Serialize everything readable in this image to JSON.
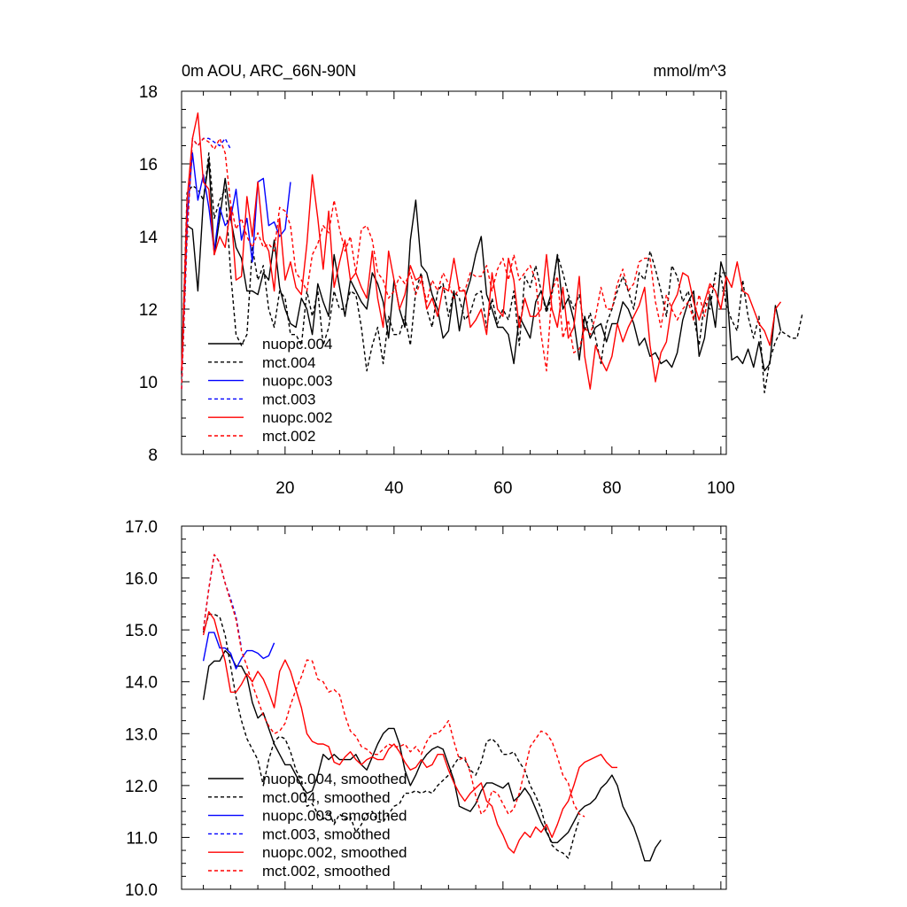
{
  "chart_data": [
    {
      "type": "line",
      "title": "0m AOU, ARC_66N-90N",
      "units": "mmol/m^3",
      "xlim": [
        1,
        101
      ],
      "ylim": [
        8,
        18
      ],
      "xticks": [
        20,
        40,
        60,
        80,
        100
      ],
      "yticks": [
        8,
        10,
        12,
        14,
        16,
        18
      ],
      "series": [
        {
          "name": "nuopc.004",
          "color": "#000000",
          "dash": false,
          "x_start": 1,
          "values": [
            10.3,
            14.3,
            14.2,
            12.5,
            15.0,
            16.1,
            13.5,
            14.5,
            15.6,
            14.5,
            13.7,
            13.4,
            12.5,
            12.5,
            12.4,
            13.0,
            12.8,
            13.9,
            12.6,
            12.0,
            11.6,
            11.5,
            12.3,
            12.0,
            11.3,
            12.7,
            12.2,
            11.8,
            13.5,
            12.6,
            11.8,
            12.8,
            12.5,
            12.2,
            12.0,
            13.0,
            12.7,
            12.2,
            11.2,
            12.8,
            12.0,
            11.5,
            13.9,
            15.0,
            13.2,
            13.0,
            12.4,
            12.0,
            11.2,
            11.4,
            12.5,
            11.4,
            12.3,
            12.8,
            13.5,
            14.0,
            12.4,
            12.0,
            11.5,
            11.5,
            11.3,
            10.5,
            11.8,
            11.5,
            11.2,
            12.2,
            12.5,
            12.0,
            12.5,
            13.5,
            12.0,
            12.3,
            11.7,
            10.6,
            11.8,
            11.2,
            11.5,
            11.6,
            11.1,
            11.6,
            11.6,
            12.2,
            12.0,
            11.6,
            11.0,
            11.2,
            10.7,
            10.8,
            10.5,
            10.6,
            10.4,
            10.8,
            11.7,
            12.2,
            12.5,
            10.7,
            11.2,
            12.4,
            11.5,
            13.3,
            12.8,
            10.6,
            10.7,
            10.5,
            10.9,
            10.4,
            11.1,
            10.3,
            10.5,
            12.1,
            11.4
          ]
        },
        {
          "name": "mct.004",
          "color": "#000000",
          "dash": true,
          "x_start": 1,
          "values": [
            10.2,
            15.2,
            15.4,
            15.3,
            15.0,
            16.3,
            14.5,
            15.0,
            15.3,
            13.0,
            11.3,
            11.0,
            11.3,
            13.7,
            12.8,
            13.2,
            12.0,
            11.5,
            12.5,
            12.3,
            11.3,
            11.3,
            11.0,
            12.5,
            11.8,
            12.5,
            11.0,
            11.5,
            12.5,
            12.0,
            12.0,
            12.5,
            12.4,
            11.5,
            10.3,
            11.0,
            11.5,
            10.5,
            11.8,
            11.3,
            11.3,
            11.8,
            11.0,
            12.5,
            13.0,
            12.0,
            11.5,
            12.5,
            12.7,
            11.8,
            12.5,
            12.3,
            11.7,
            11.9,
            12.4,
            12.5,
            11.5,
            12.3,
            11.6,
            12.0,
            11.7,
            12.5,
            11.0,
            12.9,
            12.6,
            13.2,
            12.5,
            11.9,
            12.4,
            13.5,
            13.0,
            12.4,
            12.0,
            12.4,
            11.4,
            11.9,
            11.2,
            10.5,
            11.6,
            12.0,
            12.5,
            12.9,
            12.5,
            12.0,
            13.0,
            12.8,
            13.6,
            13.1,
            12.5,
            11.8,
            13.2,
            12.9,
            12.2,
            12.5,
            11.8,
            11.0,
            12.2,
            12.0,
            13.0,
            12.9,
            12.1,
            11.7,
            11.4,
            12.8,
            11.8,
            11.2,
            11.8,
            9.7,
            10.6,
            11.1,
            11.4,
            11.3,
            11.2,
            11.2,
            11.9
          ]
        },
        {
          "name": "nuopc.003",
          "color": "#0000ff",
          "dash": false,
          "x_start": 1,
          "values": [
            10.3,
            14.5,
            16.3,
            15.0,
            15.7,
            14.8,
            13.6,
            14.8,
            14.3,
            14.5,
            15.3,
            13.9,
            14.5,
            13.3,
            15.5,
            15.6,
            14.3,
            14.4,
            14.0,
            14.2,
            15.5
          ]
        },
        {
          "name": "mct.003",
          "color": "#0000ff",
          "dash": true,
          "x_start": 1,
          "values": [
            9.8,
            14.0,
            16.7,
            16.5,
            16.7,
            16.7,
            16.6,
            16.5,
            16.7,
            16.4
          ]
        },
        {
          "name": "nuopc.002",
          "color": "#ff0000",
          "dash": false,
          "x_start": 1,
          "values": [
            10.3,
            15.0,
            16.7,
            17.4,
            15.5,
            15.3,
            13.5,
            14.0,
            13.7,
            14.8,
            12.8,
            12.9,
            15.1,
            14.0,
            15.5,
            13.9,
            13.6,
            12.5,
            14.5,
            12.8,
            13.3,
            12.6,
            12.4,
            13.8,
            15.7,
            14.5,
            13.1,
            14.7,
            12.6,
            13.3,
            13.9,
            12.8,
            13.0,
            12.6,
            12.3,
            13.6,
            12.3,
            11.5,
            13.6,
            12.8,
            12.0,
            12.4,
            13.2,
            12.8,
            12.9,
            12.0,
            12.3,
            11.8,
            12.6,
            12.5,
            13.4,
            12.5,
            12.5,
            11.5,
            11.7,
            12.0,
            11.3,
            13.0,
            12.0,
            11.8,
            13.4,
            12.8,
            11.5,
            12.3,
            11.8,
            11.8,
            12.0,
            13.5,
            12.0,
            11.5,
            12.6,
            11.2,
            11.5,
            12.9,
            10.7,
            9.8,
            11.0,
            10.6,
            10.3,
            10.7,
            11.6,
            11.1,
            11.5,
            11.8,
            12.1,
            12.6,
            11.0,
            10.0,
            10.8,
            11.1,
            12.1,
            12.4,
            13.0,
            12.9,
            12.2,
            11.7,
            12.2,
            12.7,
            12.5,
            12.0,
            12.9,
            12.6,
            13.3,
            12.5,
            12.4,
            12.0,
            11.6,
            11.4,
            11.0,
            12.0,
            12.2
          ]
        },
        {
          "name": "mct.002",
          "color": "#ff0000",
          "dash": true,
          "x_start": 1,
          "values": [
            9.8,
            14.0,
            16.7,
            16.5,
            16.7,
            16.6,
            16.4,
            16.7,
            16.3,
            14.9,
            14.2,
            14.5,
            14.0,
            13.7,
            14.1,
            13.7,
            13.8,
            13.6,
            14.8,
            14.7,
            14.3,
            13.0,
            12.8,
            12.5,
            13.5,
            13.8,
            14.3,
            14.1,
            15.0,
            14.2,
            13.6,
            14.0,
            13.0,
            14.2,
            14.3,
            13.9,
            13.0,
            12.8,
            12.3,
            12.5,
            12.9,
            12.7,
            13.0,
            12.4,
            12.8,
            12.2,
            12.8,
            12.5,
            13.0,
            12.7,
            12.3,
            12.6,
            12.5,
            13.0,
            12.9,
            12.9,
            13.2,
            12.5,
            13.1,
            13.4,
            12.8,
            13.5,
            12.8,
            13.0,
            13.2,
            12.8,
            11.3,
            10.3,
            12.5,
            12.9,
            11.2,
            11.7,
            10.8,
            10.9,
            11.5,
            11.3,
            11.8,
            12.6,
            12.0,
            12.0,
            12.7,
            13.1,
            12.5,
            12.7,
            13.3,
            13.4,
            13.4,
            12.2,
            11.5,
            12.4,
            12.0,
            11.7,
            12.0,
            12.2,
            11.7,
            12.4,
            11.8,
            12.6,
            12.7
          ]
        }
      ],
      "legend": {
        "placement": "bottom-left",
        "labels": [
          "nuopc.004",
          "mct.004",
          "nuopc.003",
          "mct.003",
          "nuopc.002",
          "mct.002"
        ]
      }
    },
    {
      "type": "line",
      "title": "",
      "xlim": [
        1,
        101
      ],
      "ylim": [
        10.0,
        17.0
      ],
      "xticks": [
        20,
        40,
        60,
        80,
        100
      ],
      "yticks": [
        "10.0",
        "11.0",
        "12.0",
        "13.0",
        "14.0",
        "15.0",
        "16.0",
        "17.0"
      ],
      "series": [
        {
          "name": "nuopc.004, smoothed",
          "color": "#000000",
          "dash": false,
          "x_start": 5,
          "values": [
            13.65,
            14.3,
            14.4,
            14.4,
            14.6,
            14.5,
            14.3,
            14.3,
            14.1,
            13.6,
            13.3,
            13.4,
            13.1,
            12.8,
            12.6,
            12.4,
            12.4,
            12.2,
            12.0,
            11.85,
            11.9,
            12.2,
            12.6,
            12.5,
            12.6,
            12.5,
            12.5,
            12.5,
            12.6,
            12.4,
            12.3,
            12.55,
            12.8,
            13.0,
            13.1,
            13.1,
            12.8,
            12.3,
            12.0,
            12.2,
            12.45,
            12.6,
            12.7,
            12.75,
            12.7,
            12.4,
            12.1,
            11.6,
            11.55,
            11.5,
            11.65,
            11.9,
            12.05,
            12.05,
            12.0,
            11.95,
            12.05,
            11.7,
            11.8,
            11.95,
            11.8,
            11.55,
            11.3,
            11.1,
            10.9,
            10.9,
            11.0,
            11.1,
            11.3,
            11.5,
            11.6,
            11.65,
            11.75,
            11.95,
            12.05,
            12.2,
            12.0,
            11.6,
            11.4,
            11.2,
            10.9,
            10.55,
            10.55,
            10.8,
            10.95
          ]
        },
        {
          "name": "mct.004, smoothed",
          "color": "#000000",
          "dash": true,
          "x_start": 5,
          "values": [
            14.95,
            15.3,
            15.3,
            15.25,
            14.9,
            14.3,
            13.7,
            13.25,
            12.9,
            12.7,
            12.5,
            12.0,
            12.5,
            12.85,
            12.95,
            12.9,
            12.65,
            12.3,
            12.1,
            11.6,
            11.65,
            11.45,
            11.35,
            11.5,
            11.25,
            11.45,
            11.35,
            11.4,
            11.1,
            11.25,
            11.45,
            11.5,
            11.3,
            11.3,
            11.45,
            11.6,
            11.65,
            11.85,
            11.85,
            11.9,
            11.85,
            11.9,
            11.85,
            12.0,
            12.1,
            12.2,
            12.4,
            12.55,
            12.5,
            12.3,
            12.2,
            12.45,
            12.85,
            12.9,
            12.8,
            12.6,
            12.6,
            12.65,
            12.45,
            12.3,
            12.0,
            11.8,
            11.55,
            11.15,
            10.85,
            10.75,
            10.7,
            10.6,
            11.0,
            11.35
          ]
        },
        {
          "name": "nuopc.003, smoothed",
          "color": "#0000ff",
          "dash": false,
          "x_start": 5,
          "values": [
            14.4,
            14.95,
            14.95,
            14.65,
            14.65,
            14.55,
            14.25,
            14.45,
            14.6,
            14.6,
            14.55,
            14.45,
            14.5,
            14.75
          ]
        },
        {
          "name": "mct.003, smoothed",
          "color": "#0000ff",
          "dash": true,
          "x_start": 5,
          "values": [
            15.0,
            15.8,
            16.45,
            16.3,
            15.9,
            15.6,
            15.25,
            14.65
          ]
        },
        {
          "name": "nuopc.002, smoothed",
          "color": "#ff0000",
          "dash": false,
          "x_start": 5,
          "values": [
            14.9,
            15.35,
            15.2,
            14.8,
            14.4,
            13.8,
            13.8,
            13.95,
            14.15,
            14.0,
            14.2,
            14.05,
            13.8,
            13.5,
            14.2,
            14.42,
            14.2,
            13.85,
            13.5,
            13.0,
            12.85,
            12.8,
            12.8,
            12.75,
            12.45,
            12.4,
            12.55,
            12.65,
            12.5,
            12.4,
            12.5,
            12.55,
            12.5,
            12.5,
            12.7,
            12.8,
            12.65,
            12.45,
            12.3,
            12.35,
            12.5,
            12.35,
            12.4,
            12.6,
            12.6,
            12.3,
            12.05,
            11.85,
            11.7,
            11.85,
            11.95,
            12.05,
            11.7,
            11.6,
            11.25,
            11.05,
            10.8,
            10.7,
            10.95,
            11.1,
            11.0,
            11.2,
            11.1,
            11.25,
            11.0,
            11.25,
            11.55,
            11.7,
            12.0,
            12.35,
            12.45,
            12.5,
            12.55,
            12.6,
            12.45,
            12.35,
            12.35
          ]
        },
        {
          "name": "mct.002, smoothed",
          "color": "#ff0000",
          "dash": true,
          "x_start": 5,
          "values": [
            15.0,
            15.8,
            16.45,
            16.3,
            15.9,
            15.55,
            15.2,
            14.6,
            14.3,
            13.95,
            13.65,
            13.35,
            13.15,
            13.0,
            13.05,
            13.2,
            13.55,
            13.85,
            14.1,
            14.42,
            14.4,
            14.05,
            14.0,
            13.8,
            13.85,
            13.75,
            13.35,
            13.05,
            12.95,
            12.75,
            12.7,
            12.6,
            12.6,
            12.7,
            12.8,
            12.75,
            12.75,
            12.8,
            12.65,
            12.75,
            12.6,
            12.85,
            13.0,
            13.0,
            13.1,
            13.25,
            12.85,
            12.5,
            12.55,
            12.25,
            11.8,
            11.45,
            11.55,
            11.9,
            11.85,
            11.65,
            11.45,
            11.55,
            11.85,
            12.3,
            12.75,
            12.9,
            13.05,
            13.0,
            12.85,
            12.55,
            12.2,
            12.05,
            11.65,
            11.45,
            11.4
          ]
        }
      ],
      "legend": {
        "placement": "bottom-left",
        "labels": [
          "nuopc.004, smoothed",
          "mct.004, smoothed",
          "nuopc.003, smoothed",
          "mct.003, smoothed",
          "nuopc.002, smoothed",
          "mct.002, smoothed"
        ]
      }
    }
  ]
}
